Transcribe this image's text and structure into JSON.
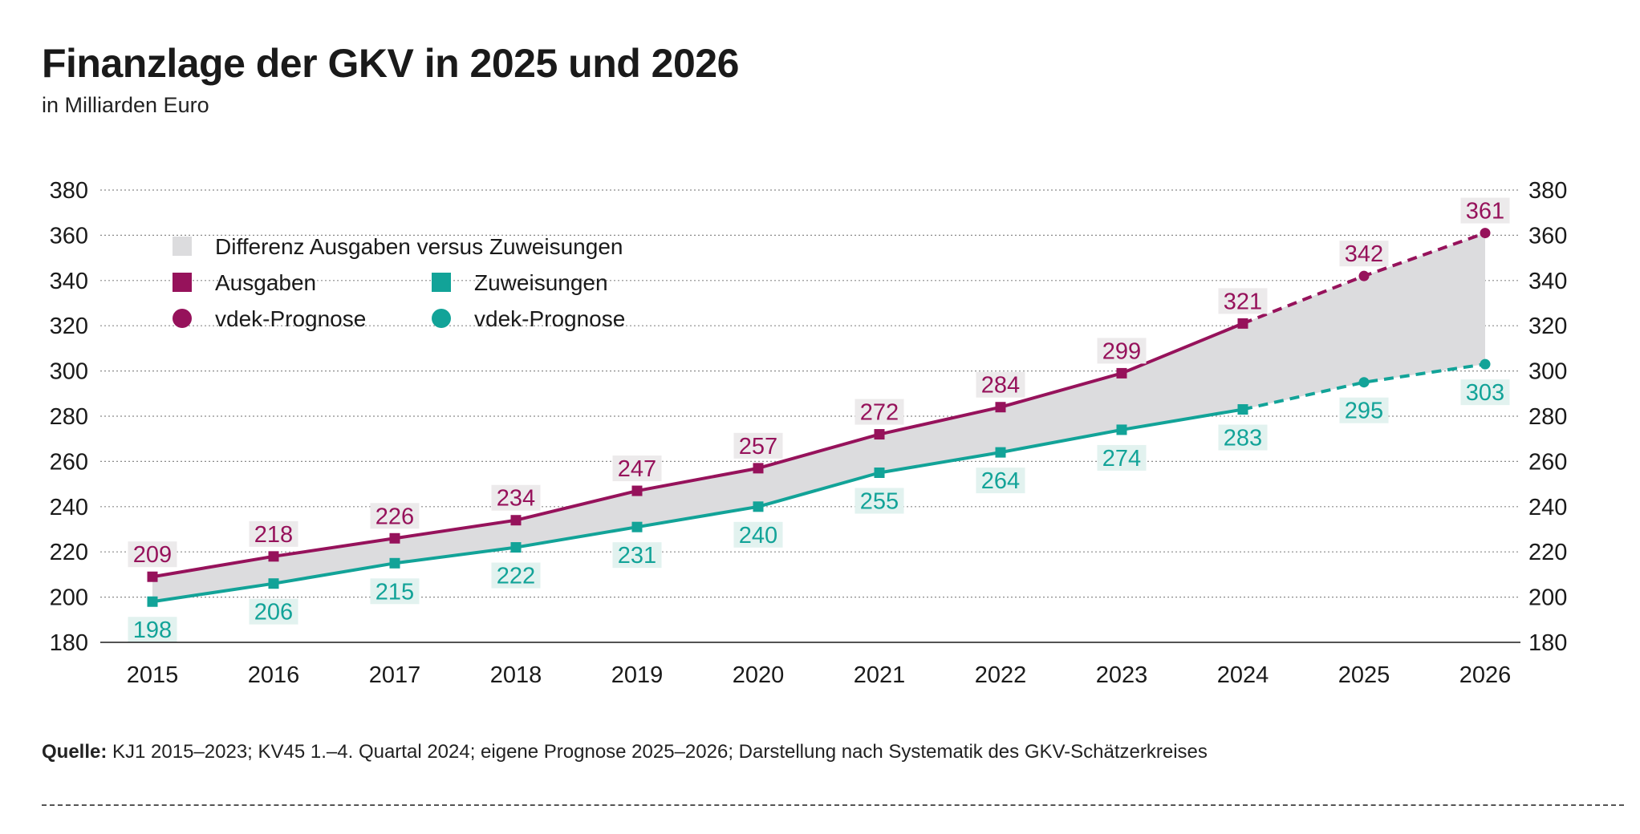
{
  "title": "Finanzlage der GKV in 2025 und 2026",
  "subtitle": "in Milliarden Euro",
  "source_label": "Quelle:",
  "source_text": " KJ1 2015–2023; KV45 1.–4. Quartal 2024; eigene Prognose 2025–2026; Darstellung nach Systematik des GKV-Schätzerkreises",
  "colors": {
    "ausgaben": "#96125b",
    "zuweisungen": "#12a398",
    "differenz": "#dcdcde",
    "label_bg_a": "#eceaeb",
    "label_bg_z": "#e2f2ef"
  },
  "chart_data": {
    "type": "line",
    "x": [
      "2015",
      "2016",
      "2017",
      "2018",
      "2019",
      "2020",
      "2021",
      "2022",
      "2023",
      "2024",
      "2025",
      "2026"
    ],
    "ylim": [
      180,
      380
    ],
    "yticks": [
      180,
      200,
      220,
      240,
      260,
      280,
      300,
      320,
      340,
      360,
      380
    ],
    "grid": true,
    "legend": {
      "placement": "top-left",
      "entries": [
        {
          "key": "differenz",
          "label": "Differenz Ausgaben versus Zuweisungen",
          "marker": "rect"
        },
        {
          "key": "ausgaben",
          "label": "Ausgaben",
          "marker": "square"
        },
        {
          "key": "zuweisungen",
          "label": "Zuweisungen",
          "marker": "square"
        },
        {
          "key": "ausgaben",
          "label": "vdek-Prognose",
          "marker": "circle"
        },
        {
          "key": "zuweisungen",
          "label": "vdek-Prognose",
          "marker": "circle"
        }
      ]
    },
    "series": [
      {
        "key": "ausgaben",
        "name": "Ausgaben",
        "forecast_from": "2024",
        "values": [
          209,
          218,
          226,
          234,
          247,
          257,
          272,
          284,
          299,
          321,
          342,
          361
        ]
      },
      {
        "key": "zuweisungen",
        "name": "Zuweisungen",
        "forecast_from": "2024",
        "values": [
          198,
          206,
          215,
          222,
          231,
          240,
          255,
          264,
          274,
          283,
          295,
          303
        ]
      }
    ]
  }
}
